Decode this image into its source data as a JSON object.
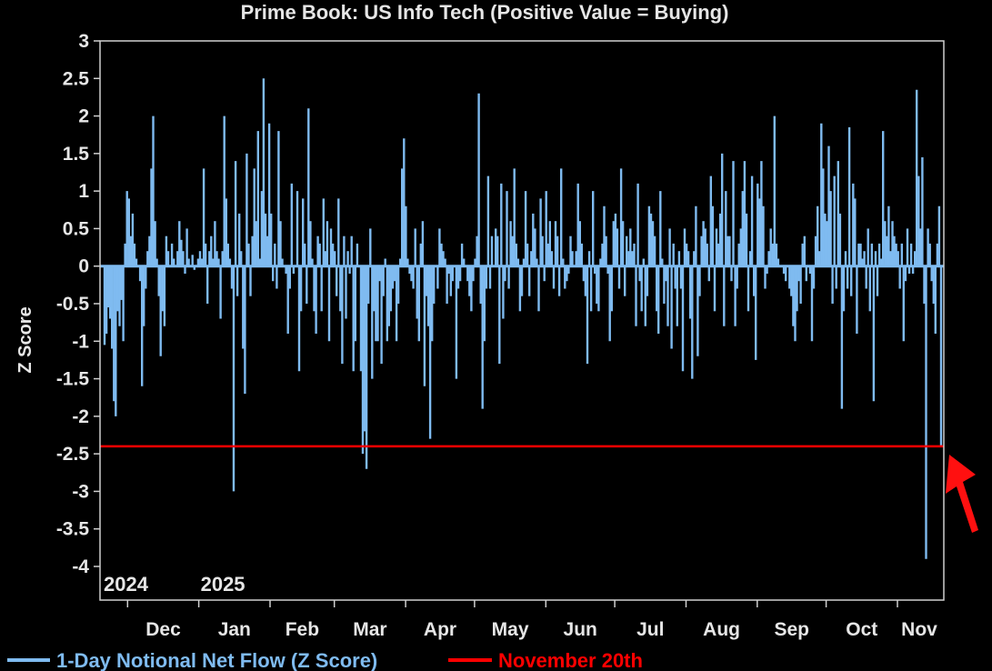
{
  "chart_data": {
    "type": "bar",
    "title": "Prime Book: US Info Tech (Positive Value = Buying)",
    "ylabel": "Z Score",
    "xlabel": "",
    "ylim": [
      -4.5,
      3
    ],
    "yticks": [
      3,
      2.5,
      2,
      1.5,
      1,
      0.5,
      0,
      -0.5,
      -1,
      -1.5,
      -2,
      -2.5,
      -3,
      -3.5,
      -4
    ],
    "xticks": [
      "Dec",
      "Jan",
      "Feb",
      "Mar",
      "Apr",
      "May",
      "Jun",
      "Jul",
      "Aug",
      "Sep",
      "Oct",
      "Nov"
    ],
    "year_labels": [
      "2024",
      "2025"
    ],
    "date_range": [
      "2024-11-21",
      "2025-11-20"
    ],
    "series": [
      {
        "name": "1-Day Notional Net Flow (Z Score)",
        "color": "#7fbbf0",
        "values": [
          -1.05,
          -0.9,
          -0.55,
          -0.7,
          -1.1,
          -1.8,
          -2.0,
          -0.6,
          -0.8,
          -0.45,
          -1.0,
          0.3,
          1.0,
          0.9,
          0.4,
          0.7,
          0.3,
          0.1,
          0.0,
          -0.2,
          -1.6,
          -0.8,
          -0.3,
          0.2,
          0.4,
          1.3,
          2.0,
          0.6,
          0.1,
          -0.4,
          -1.2,
          -0.6,
          -0.8,
          0.4,
          0.2,
          0.0,
          0.3,
          0.1,
          0.0,
          0.2,
          0.6,
          0.35,
          0.2,
          -0.1,
          0.5,
          0.1,
          0.0,
          0.15,
          -0.05,
          0.0,
          0.1,
          0.2,
          0.1,
          1.3,
          0.3,
          -0.5,
          0.2,
          0.4,
          0.1,
          0.6,
          0.2,
          0.1,
          -0.7,
          0.2,
          2.0,
          0.9,
          0.3,
          0.1,
          -0.3,
          -3.0,
          1.4,
          -0.4,
          0.7,
          0.2,
          -1.1,
          -1.7,
          1.5,
          0.3,
          -0.4,
          0.4,
          1.3,
          0.6,
          1.8,
          0.1,
          1.0,
          2.5,
          0.7,
          0.4,
          1.9,
          0.7,
          -0.2,
          0.3,
          -0.3,
          1.8,
          0.6,
          0.1,
          0.0,
          -0.1,
          -0.9,
          -0.3,
          1.1,
          -0.1,
          0.0,
          1.0,
          -1.4,
          -0.6,
          0.9,
          0.3,
          -0.5,
          2.1,
          0.6,
          0.1,
          -0.6,
          -0.9,
          0.4,
          0.3,
          -0.6,
          0.9,
          0.2,
          0.6,
          -1.0,
          0.5,
          0.3,
          0.2,
          -0.4,
          0.9,
          -0.6,
          -1.3,
          0.4,
          -0.7,
          0.2,
          -0.1,
          0.4,
          -1.4,
          -1.0,
          0.3,
          0.0,
          -1.4,
          -2.5,
          -2.2,
          -2.7,
          -0.5,
          0.5,
          -1.5,
          -0.6,
          -1.0,
          -1.0,
          -0.2,
          -1.3,
          -0.4,
          0.1,
          -1.0,
          -0.8,
          -0.6,
          -0.3,
          -0.2,
          -1.0,
          -0.5,
          0.1,
          1.3,
          1.7,
          0.8,
          0.1,
          -0.1,
          -0.2,
          -0.3,
          0.5,
          -0.7,
          -1.0,
          0.3,
          0.6,
          -1.6,
          -0.4,
          -0.8,
          -2.3,
          -1.0,
          -0.5,
          0.0,
          -0.3,
          0.5,
          0.3,
          0.2,
          0.1,
          -0.5,
          -0.1,
          -0.4,
          -0.2,
          0.0,
          -1.5,
          -0.3,
          -0.2,
          0.3,
          0.1,
          0.0,
          -0.2,
          -0.4,
          -0.6,
          -0.2,
          0.1,
          0.4,
          2.3,
          -0.5,
          -1.9,
          -1.0,
          -0.3,
          1.2,
          -0.3,
          0.4,
          0.0,
          0.5,
          0.4,
          -1.3,
          1.1,
          -0.7,
          -0.2,
          1.0,
          -0.3,
          0.6,
          0.4,
          1.3,
          0.3,
          0.1,
          -0.6,
          -0.4,
          0.1,
          1.0,
          0.3,
          -0.4,
          0.2,
          0.7,
          0.5,
          0.1,
          -0.6,
          0.9,
          0.4,
          -0.2,
          1.0,
          0.3,
          0.6,
          0.2,
          -0.3,
          0.6,
          0.4,
          -0.4,
          1.3,
          0.1,
          -0.3,
          -0.2,
          -0.1,
          0.4,
          0.2,
          0.0,
          0.2,
          1.1,
          0.6,
          0.3,
          -0.2,
          -0.4,
          -1.3,
          0.2,
          -0.6,
          1.0,
          -0.1,
          -0.5,
          -0.6,
          0.1,
          0.3,
          0.8,
          0.4,
          -0.1,
          -1.0,
          -0.6,
          0.6,
          0.7,
          0.5,
          -0.3,
          1.3,
          0.6,
          -0.4,
          0.4,
          0.2,
          0.5,
          0.2,
          0.3,
          -0.8,
          1.1,
          -0.2,
          -0.6,
          0.1,
          -0.8,
          -0.4,
          0.8,
          0.7,
          0.6,
          0.4,
          -0.6,
          -0.9,
          1.0,
          0.1,
          -0.5,
          -0.2,
          -0.8,
          0.5,
          -1.1,
          0.3,
          -0.3,
          -0.8,
          0.2,
          -0.3,
          -1.4,
          0.5,
          0.3,
          0.2,
          -0.7,
          -1.5,
          0.2,
          0.8,
          -1.2,
          -0.4,
          0.4,
          0.6,
          0.5,
          0.3,
          -0.2,
          1.2,
          0.8,
          -0.6,
          0.5,
          0.3,
          0.7,
          1.5,
          -0.8,
          1.0,
          0.4,
          0.4,
          -0.2,
          1.4,
          -0.8,
          -0.3,
          0.3,
          0.5,
          1.0,
          1.4,
          0.7,
          -0.6,
          0.2,
          1.2,
          -0.4,
          -1.25,
          1.1,
          0.9,
          1.4,
          0.8,
          -0.3,
          -0.1,
          0.2,
          0.5,
          0.3,
          2.0,
          0.3,
          0.1,
          0.0,
          0.0,
          -0.1,
          -0.2,
          0.0,
          -0.3,
          -0.4,
          -0.8,
          -1.0,
          -0.6,
          -0.2,
          -0.5,
          0.3,
          0.4,
          -0.2,
          0.0,
          -0.1,
          -1.0,
          -0.3,
          0.4,
          0.8,
          0.2,
          1.9,
          1.3,
          0.7,
          0.6,
          1.6,
          1.0,
          -0.5,
          1.2,
          -0.3,
          1.4,
          0.7,
          -1.9,
          -0.6,
          0.2,
          -0.3,
          1.85,
          -0.4,
          1.1,
          0.9,
          -0.9,
          0.3,
          0.3,
          0.1,
          0.2,
          -0.3,
          0.5,
          -0.6,
          0.3,
          -1.8,
          0.2,
          -0.4,
          0.3,
          0.1,
          1.8,
          0.6,
          0.4,
          0.8,
          0.2,
          0.6,
          0.4,
          0.3,
          0.2,
          -0.3,
          0.3,
          -1.0,
          -0.2,
          0.5,
          -0.1,
          0.3,
          -0.1,
          0.2,
          2.35,
          1.2,
          0.5,
          1.45,
          -0.5,
          -3.9,
          0.5,
          0.3,
          -0.2,
          -0.5,
          -0.9,
          0.3,
          0.8,
          -2.4
        ]
      },
      {
        "name": "November 20th",
        "color": "#ff0000",
        "value": -2.4
      }
    ],
    "legend": "bottom"
  }
}
